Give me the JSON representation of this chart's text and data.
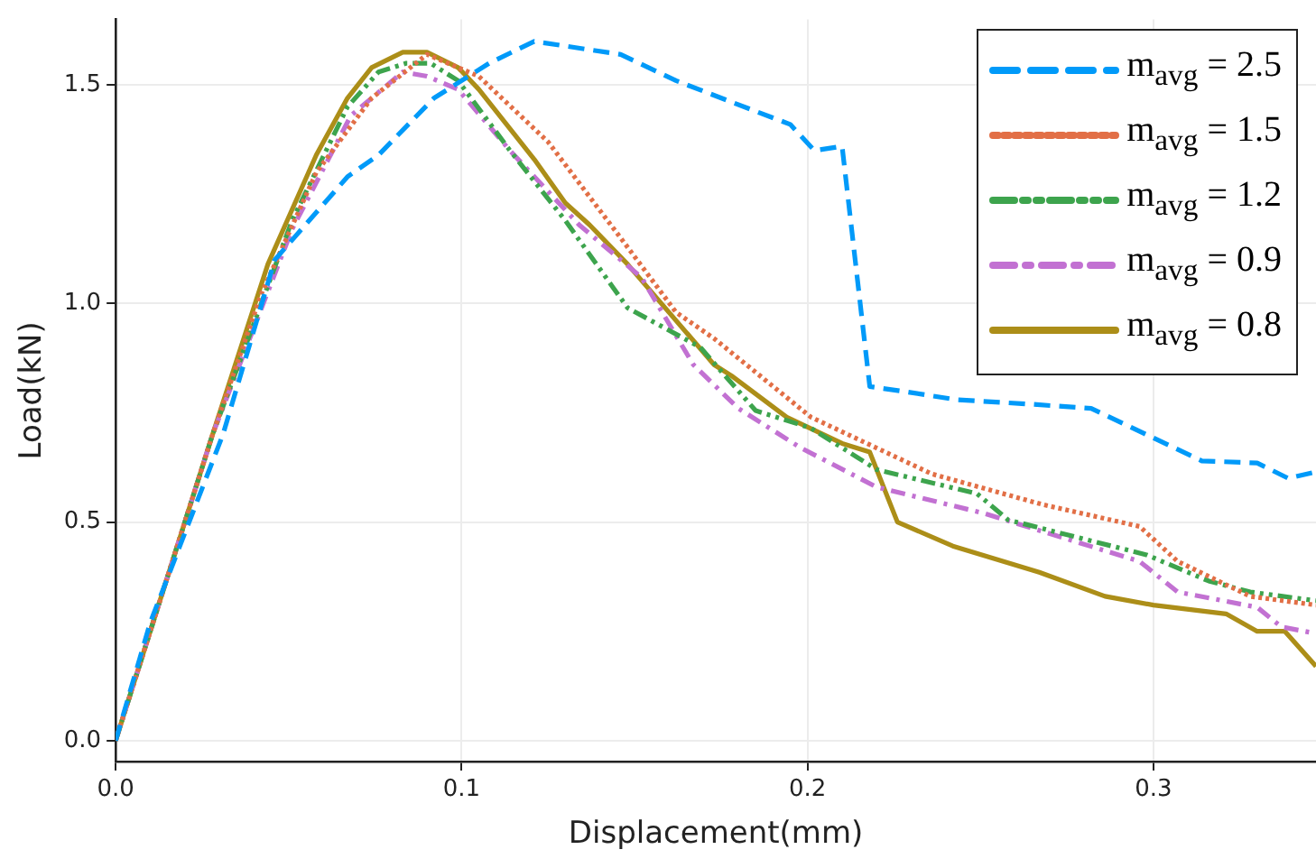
{
  "chart_data": {
    "type": "line",
    "xlabel": "Displacement(mm)",
    "ylabel": "Load(kN)",
    "xlim": [
      0,
      0.347
    ],
    "ylim": [
      -0.048,
      1.65
    ],
    "xticks": [
      {
        "value": 0,
        "label": "0.0"
      },
      {
        "value": 0.1,
        "label": "0.1"
      },
      {
        "value": 0.2,
        "label": "0.2"
      },
      {
        "value": 0.3,
        "label": "0.3"
      }
    ],
    "yticks": [
      {
        "value": 0,
        "label": "0.0"
      },
      {
        "value": 0.5,
        "label": "0.5"
      },
      {
        "value": 1,
        "label": "1.0"
      },
      {
        "value": 1.5,
        "label": "1.5"
      }
    ],
    "grid": true,
    "legend": "top right",
    "marker": "none",
    "series": [
      {
        "name": "m$_{avg}$ = 2.5",
        "color": "#009af9",
        "line_style": "dashed",
        "x": [
          0,
          0.01,
          0.031,
          0.046,
          0.067,
          0.076,
          0.092,
          0.108,
          0.121,
          0.146,
          0.162,
          0.185,
          0.195,
          0.202,
          0.21,
          0.218,
          0.227,
          0.243,
          0.264,
          0.282,
          0.298,
          0.314,
          0.33,
          0.339,
          0.347
        ],
        "values": [
          0,
          0.27,
          0.7,
          1.1,
          1.29,
          1.34,
          1.47,
          1.55,
          1.6,
          1.57,
          1.51,
          1.44,
          1.41,
          1.35,
          1.36,
          0.81,
          0.8,
          0.78,
          0.77,
          0.76,
          0.7,
          0.64,
          0.635,
          0.6,
          0.615
        ]
      },
      {
        "name": "m$_{avg}$ = 1.5",
        "color": "#e26f46",
        "line_style": "dotted",
        "x": [
          0,
          0.028,
          0.042,
          0.058,
          0.074,
          0.09,
          0.105,
          0.125,
          0.146,
          0.162,
          0.173,
          0.201,
          0.236,
          0.268,
          0.296,
          0.307,
          0.328,
          0.347
        ],
        "values": [
          0,
          0.7,
          1.02,
          1.3,
          1.47,
          1.57,
          1.52,
          1.37,
          1.15,
          0.98,
          0.92,
          0.74,
          0.61,
          0.54,
          0.49,
          0.41,
          0.33,
          0.31
        ]
      },
      {
        "name": "m$_{avg}$ = 1.2",
        "color": "#3da44d",
        "line_style": "dashdotdot",
        "x": [
          0,
          0.028,
          0.051,
          0.067,
          0.076,
          0.084,
          0.091,
          0.099,
          0.114,
          0.13,
          0.148,
          0.169,
          0.185,
          0.201,
          0.22,
          0.249,
          0.258,
          0.298,
          0.316,
          0.328,
          0.347
        ],
        "values": [
          0,
          0.7,
          1.19,
          1.45,
          1.53,
          1.55,
          1.55,
          1.51,
          1.35,
          1.19,
          0.99,
          0.9,
          0.755,
          0.715,
          0.62,
          0.565,
          0.505,
          0.425,
          0.365,
          0.34,
          0.32
        ]
      },
      {
        "name": "m$_{avg}$ = 0.9",
        "color": "#c271d2",
        "line_style": "dashdot",
        "x": [
          0,
          0.028,
          0.051,
          0.068,
          0.083,
          0.09,
          0.099,
          0.114,
          0.134,
          0.152,
          0.167,
          0.18,
          0.198,
          0.22,
          0.251,
          0.296,
          0.307,
          0.33,
          0.337,
          0.347
        ],
        "values": [
          0,
          0.7,
          1.17,
          1.43,
          1.53,
          1.52,
          1.49,
          1.35,
          1.18,
          1.06,
          0.86,
          0.76,
          0.67,
          0.58,
          0.52,
          0.41,
          0.34,
          0.305,
          0.26,
          0.245
        ]
      },
      {
        "name": "m$_{avg}$ = 0.8",
        "color": "#ac8e18",
        "line_style": "solid",
        "x": [
          0,
          0.028,
          0.044,
          0.058,
          0.067,
          0.074,
          0.083,
          0.09,
          0.099,
          0.105,
          0.121,
          0.13,
          0.137,
          0.148,
          0.173,
          0.178,
          0.194,
          0.21,
          0.218,
          0.226,
          0.242,
          0.267,
          0.286,
          0.3,
          0.321,
          0.33,
          0.338,
          0.347
        ],
        "values": [
          0,
          0.7,
          1.09,
          1.34,
          1.47,
          1.54,
          1.575,
          1.575,
          1.54,
          1.49,
          1.33,
          1.23,
          1.18,
          1.09,
          0.86,
          0.835,
          0.74,
          0.68,
          0.66,
          0.5,
          0.445,
          0.385,
          0.33,
          0.31,
          0.29,
          0.25,
          0.25,
          0.17
        ]
      }
    ]
  }
}
